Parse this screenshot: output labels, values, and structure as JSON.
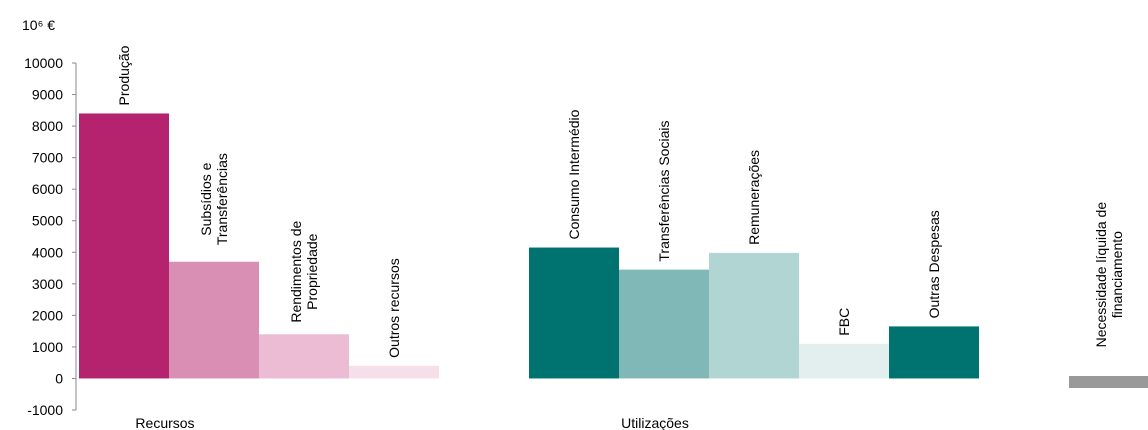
{
  "chart_data": {
    "type": "bar",
    "unit_label": "10⁶ €",
    "ylim": [
      -1000,
      10000
    ],
    "yticks": [
      -1000,
      0,
      1000,
      2000,
      3000,
      4000,
      5000,
      6000,
      7000,
      8000,
      9000,
      10000
    ],
    "groups": [
      {
        "label": "Recursos",
        "bars": [
          {
            "label": "Produção",
            "value": 8400,
            "color": "#b5226e"
          },
          {
            "label": "Subsídios e\nTransferências",
            "value": 3700,
            "color": "#d98fb4"
          },
          {
            "label": "Rendimentos de\nPropriedade",
            "value": 1400,
            "color": "#ebbcd3"
          },
          {
            "label": "Outros recursos",
            "value": 400,
            "color": "#f5e0ea"
          }
        ]
      },
      {
        "label": "Utilizações",
        "bars": [
          {
            "label": "Consumo Intermédio",
            "value": 4150,
            "color": "#007370"
          },
          {
            "label": "Transferências Sociais",
            "value": 3450,
            "color": "#80b8b7"
          },
          {
            "label": "Remunerações",
            "value": 3980,
            "color": "#b1d5d3"
          },
          {
            "label": "FBC",
            "value": 1100,
            "color": "#e3efee"
          },
          {
            "label": "Outras Despesas",
            "value": 1650,
            "color": "#007370"
          }
        ]
      },
      {
        "label": "",
        "bars": [
          {
            "label": "Necessidade líquida de\nfinanciamento",
            "value": -280,
            "color": "#999999"
          }
        ]
      }
    ]
  }
}
